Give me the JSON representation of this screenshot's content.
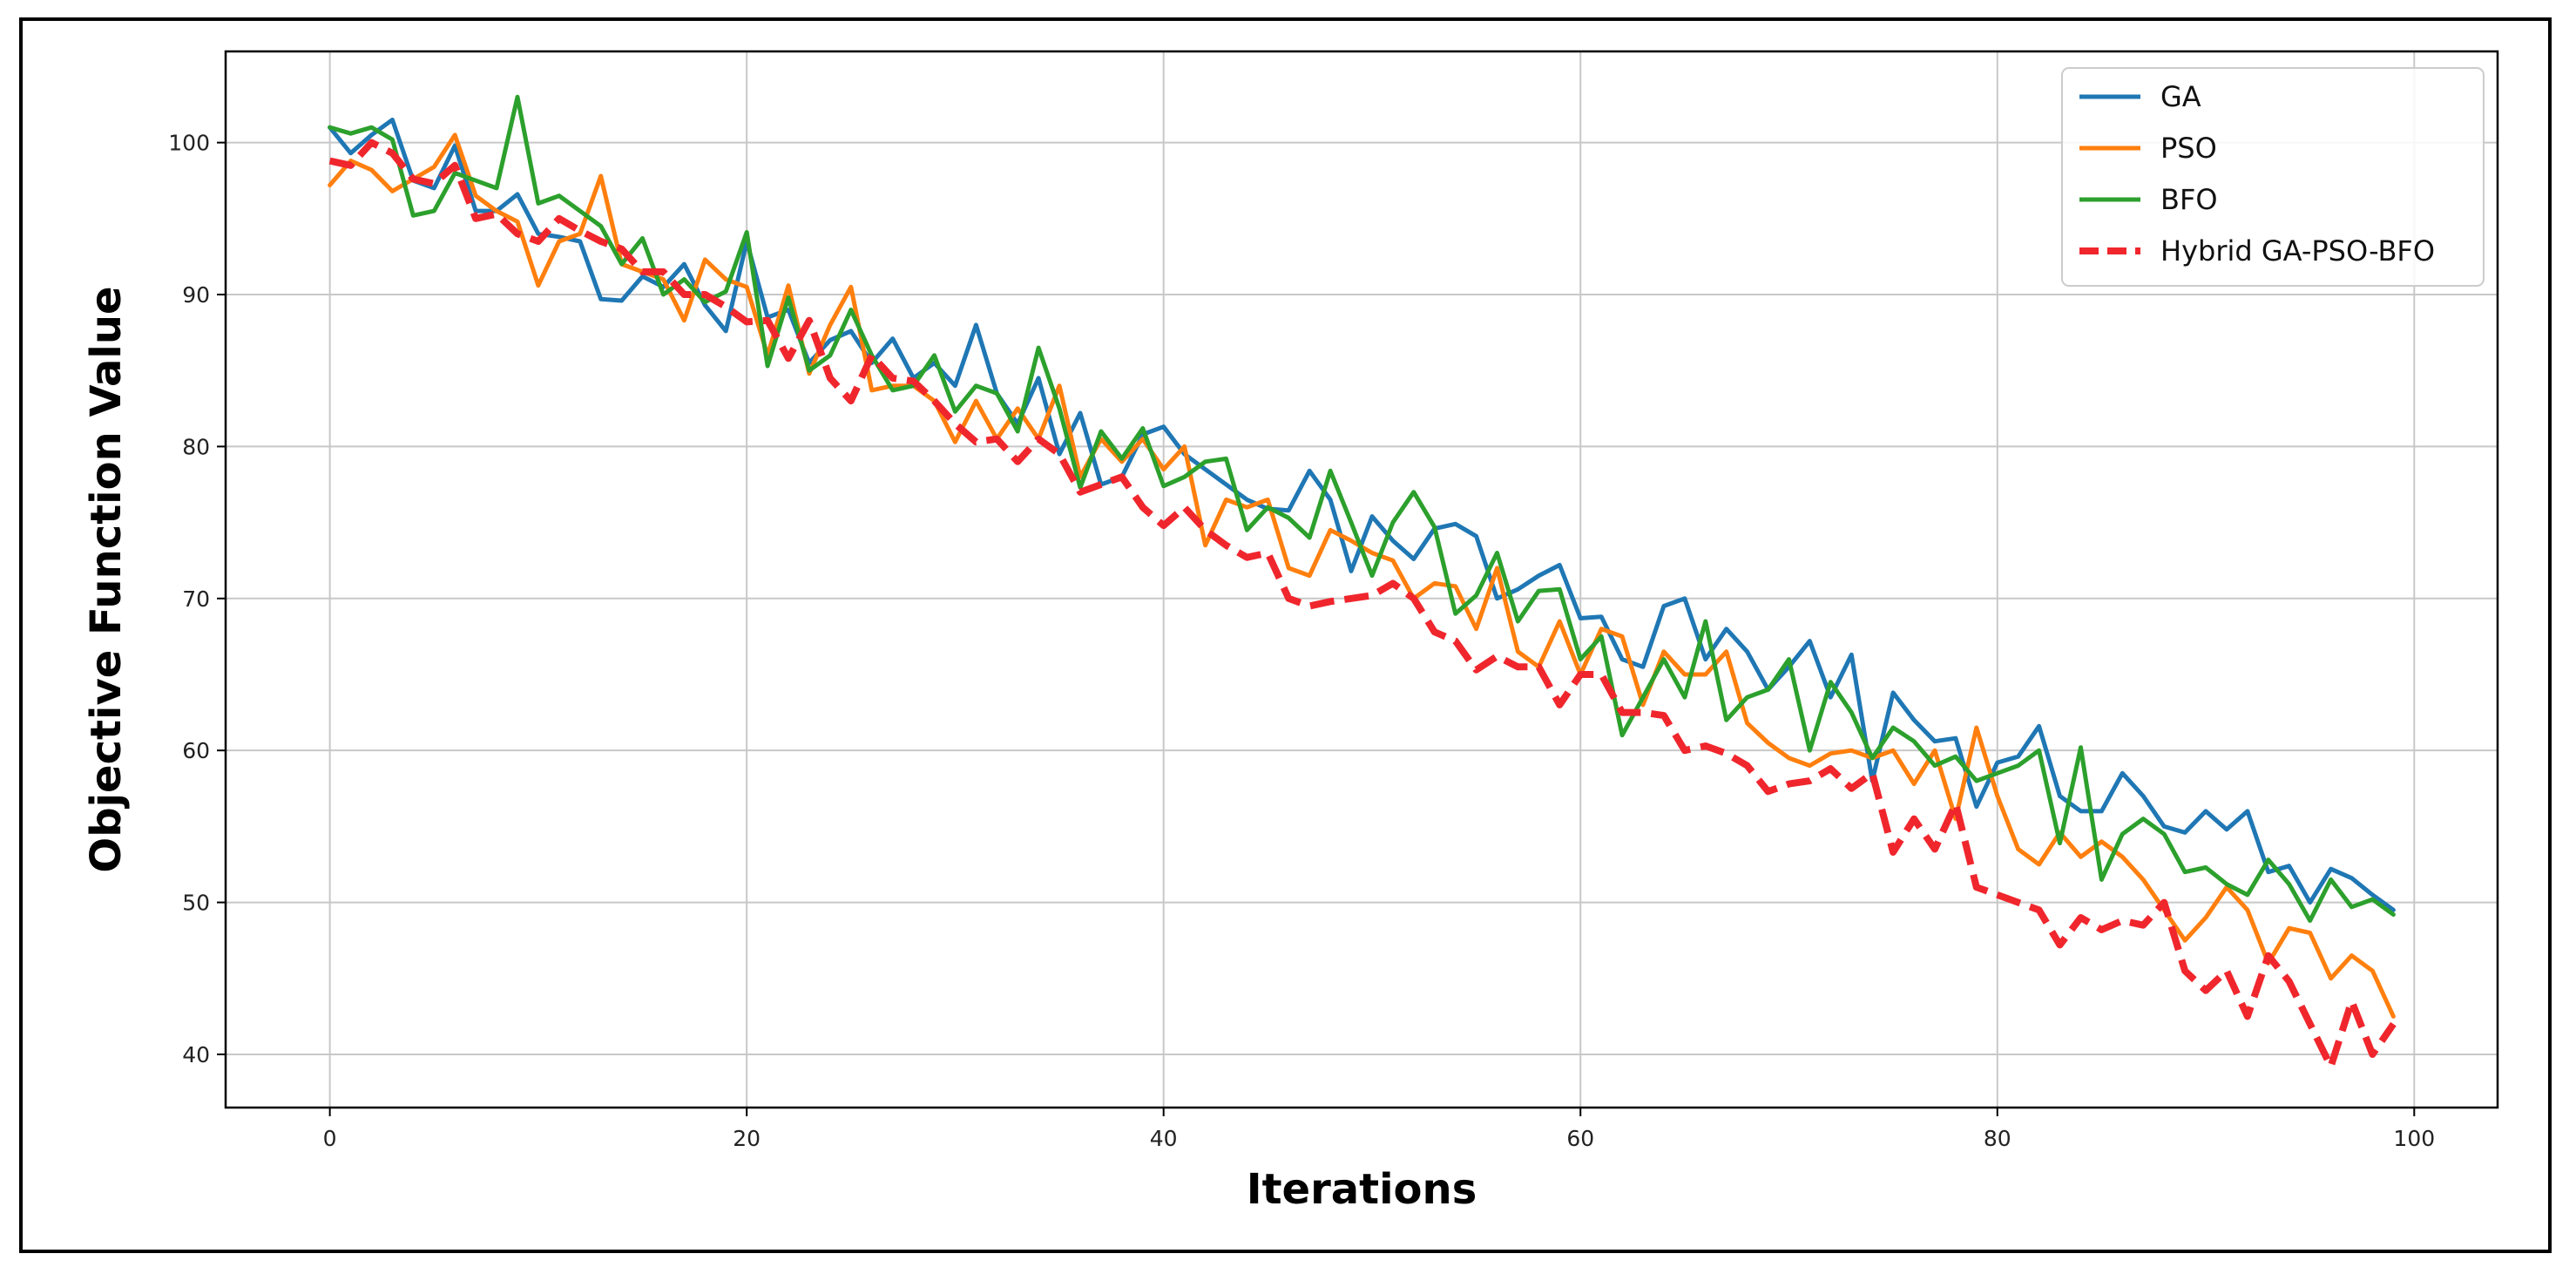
{
  "chart_data": {
    "type": "line",
    "title": "",
    "xlabel": "Iterations",
    "ylabel": "Objective Function Value",
    "xlim": [
      -5,
      104
    ],
    "ylim": [
      36.5,
      106
    ],
    "xticks": [
      0,
      20,
      40,
      60,
      80,
      100
    ],
    "yticks": [
      40,
      50,
      60,
      70,
      80,
      90,
      100
    ],
    "grid": true,
    "legend_position": "top-right",
    "series": [
      {
        "name": "GA",
        "color": "#1f77b4",
        "style": "solid",
        "x": [
          0,
          1,
          2,
          3,
          4,
          5,
          6,
          7,
          8,
          9,
          10,
          11,
          12,
          13,
          14,
          15,
          16,
          17,
          18,
          19,
          20,
          21,
          22,
          23,
          24,
          25,
          26,
          27,
          28,
          29,
          30,
          31,
          32,
          33,
          34,
          35,
          36,
          37,
          38,
          39,
          40,
          41,
          42,
          43,
          44,
          45,
          46,
          47,
          48,
          49,
          50,
          51,
          52,
          53,
          54,
          55,
          56,
          57,
          58,
          59,
          60,
          61,
          62,
          63,
          64,
          65,
          66,
          67,
          68,
          69,
          70,
          71,
          72,
          73,
          74,
          75,
          76,
          77,
          78,
          79,
          80,
          81,
          82,
          83,
          84,
          85,
          86,
          87,
          88,
          89,
          90,
          91,
          92,
          93,
          94,
          95,
          96,
          97,
          98,
          99
        ],
        "y": [
          101,
          99.3,
          100.5,
          101.5,
          97.5,
          97,
          99.8,
          95.5,
          95.5,
          96.6,
          94,
          93.8,
          93.5,
          89.7,
          89.6,
          91.2,
          90.5,
          92,
          89.3,
          87.6,
          93.5,
          88.5,
          89,
          85.5,
          87,
          87.6,
          85.5,
          87.1,
          84.5,
          85.5,
          84,
          88,
          83.5,
          81.5,
          84.5,
          79.5,
          82.2,
          77.5,
          78,
          80.8,
          81.3,
          79.5,
          78.5,
          77.5,
          76.5,
          75.9,
          75.8,
          78.4,
          76.5,
          71.8,
          75.4,
          73.8,
          72.6,
          74.6,
          74.9,
          74.1,
          70,
          70.6,
          71.5,
          72.2,
          68.7,
          68.8,
          66,
          65.5,
          69.5,
          70,
          66,
          68,
          66.5,
          64,
          65.5,
          67.2,
          63.5,
          66.3,
          58,
          63.8,
          62,
          60.6,
          60.8,
          56.3,
          59.2,
          59.6,
          61.6,
          57,
          56,
          56,
          58.5,
          57,
          55,
          54.6,
          56,
          54.8,
          56,
          52,
          52.4,
          50,
          52.2,
          51.6,
          50.5,
          49.5
        ]
      },
      {
        "name": "PSO",
        "color": "#ff7f0e",
        "style": "solid",
        "x": [
          0,
          1,
          2,
          3,
          4,
          5,
          6,
          7,
          8,
          9,
          10,
          11,
          12,
          13,
          14,
          15,
          16,
          17,
          18,
          19,
          20,
          21,
          22,
          23,
          24,
          25,
          26,
          27,
          28,
          29,
          30,
          31,
          32,
          33,
          34,
          35,
          36,
          37,
          38,
          39,
          40,
          41,
          42,
          43,
          44,
          45,
          46,
          47,
          48,
          49,
          50,
          51,
          52,
          53,
          54,
          55,
          56,
          57,
          58,
          59,
          60,
          61,
          62,
          63,
          64,
          65,
          66,
          67,
          68,
          69,
          70,
          71,
          72,
          73,
          74,
          75,
          76,
          77,
          78,
          79,
          80,
          81,
          82,
          83,
          84,
          85,
          86,
          87,
          88,
          89,
          90,
          91,
          92,
          93,
          94,
          95,
          96,
          97,
          98,
          99
        ],
        "y": [
          97.2,
          98.8,
          98.2,
          96.8,
          97.6,
          98.4,
          100.5,
          96.5,
          95.5,
          94.8,
          90.6,
          93.5,
          94,
          97.8,
          92,
          91.5,
          91,
          88.3,
          92.3,
          91,
          90.5,
          86,
          90.6,
          84.8,
          88,
          90.5,
          83.7,
          84,
          84,
          83,
          80.3,
          83,
          80.5,
          82.5,
          80.5,
          84,
          78,
          80.5,
          79,
          80.5,
          78.5,
          80,
          73.5,
          76.5,
          76,
          76.5,
          72,
          71.5,
          74.5,
          73.8,
          73,
          72.5,
          70,
          71,
          70.8,
          68,
          72,
          66.5,
          65.5,
          68.5,
          65,
          68,
          67.5,
          63,
          66.5,
          65,
          65,
          66.5,
          61.8,
          60.5,
          59.5,
          59,
          59.8,
          60,
          59.5,
          60,
          57.8,
          60,
          55.5,
          61.5,
          57,
          53.5,
          52.5,
          54.6,
          53,
          54,
          53,
          51.5,
          49.5,
          47.5,
          49,
          51,
          49.5,
          46,
          48.3,
          48,
          45,
          46.5,
          45.5,
          42.5
        ]
      },
      {
        "name": "BFO",
        "color": "#2ca02c",
        "style": "solid",
        "x": [
          0,
          1,
          2,
          3,
          4,
          5,
          6,
          7,
          8,
          9,
          10,
          11,
          12,
          13,
          14,
          15,
          16,
          17,
          18,
          19,
          20,
          21,
          22,
          23,
          24,
          25,
          26,
          27,
          28,
          29,
          30,
          31,
          32,
          33,
          34,
          35,
          36,
          37,
          38,
          39,
          40,
          41,
          42,
          43,
          44,
          45,
          46,
          47,
          48,
          49,
          50,
          51,
          52,
          53,
          54,
          55,
          56,
          57,
          58,
          59,
          60,
          61,
          62,
          63,
          64,
          65,
          66,
          67,
          68,
          69,
          70,
          71,
          72,
          73,
          74,
          75,
          76,
          77,
          78,
          79,
          80,
          81,
          82,
          83,
          84,
          85,
          86,
          87,
          88,
          89,
          90,
          91,
          92,
          93,
          94,
          95,
          96,
          97,
          98,
          99
        ],
        "y": [
          101,
          100.6,
          101,
          100.2,
          95.2,
          95.5,
          98,
          97.5,
          97,
          103,
          96,
          96.5,
          95.5,
          94.5,
          92,
          93.7,
          90,
          91,
          89.5,
          90.2,
          94.1,
          85.3,
          89.8,
          85,
          86,
          89,
          86,
          83.7,
          84,
          86,
          82.3,
          84,
          83.5,
          81,
          86.5,
          82.5,
          77.3,
          81,
          79.2,
          81.2,
          77.4,
          78,
          79,
          79.2,
          74.5,
          76,
          75.3,
          74,
          78.4,
          75,
          71.5,
          75,
          77,
          74.7,
          69,
          70.2,
          73,
          68.5,
          70.5,
          70.6,
          66,
          67.5,
          61,
          63.5,
          66,
          63.5,
          68.5,
          62,
          63.5,
          64,
          66,
          60,
          64.5,
          62.5,
          59.5,
          61.5,
          60.6,
          59,
          59.6,
          58,
          58.5,
          59,
          60,
          53.9,
          60.2,
          51.5,
          54.5,
          55.5,
          54.5,
          52,
          52.3,
          51.2,
          50.5,
          52.8,
          51.2,
          48.8,
          51.5,
          49.7,
          50.2,
          49.2
        ]
      },
      {
        "name": "Hybrid GA-PSO-BFO",
        "color": "#f0262d",
        "style": "dashed",
        "x": [
          0,
          1,
          2,
          3,
          4,
          5,
          6,
          7,
          8,
          9,
          10,
          11,
          12,
          13,
          14,
          15,
          16,
          17,
          18,
          19,
          20,
          21,
          22,
          23,
          24,
          25,
          26,
          27,
          28,
          29,
          30,
          31,
          32,
          33,
          34,
          35,
          36,
          37,
          38,
          39,
          40,
          41,
          42,
          43,
          44,
          45,
          46,
          47,
          48,
          49,
          50,
          51,
          52,
          53,
          54,
          55,
          56,
          57,
          58,
          59,
          60,
          61,
          62,
          63,
          64,
          65,
          66,
          67,
          68,
          69,
          70,
          71,
          72,
          73,
          74,
          75,
          76,
          77,
          78,
          79,
          80,
          81,
          82,
          83,
          84,
          85,
          86,
          87,
          88,
          89,
          90,
          91,
          92,
          93,
          94,
          95,
          96,
          97,
          98,
          99
        ],
        "y": [
          98.8,
          98.5,
          100,
          99.3,
          97.6,
          97.3,
          98.5,
          95,
          95.3,
          94,
          93.5,
          95,
          94.2,
          93.5,
          93,
          91.5,
          91.5,
          90,
          90,
          89.2,
          88.2,
          88.3,
          85.8,
          88.3,
          84.5,
          83,
          86,
          84.5,
          84.3,
          83,
          81.5,
          80.3,
          80.5,
          79,
          80.5,
          79.5,
          77,
          77.5,
          78,
          76,
          74.8,
          76,
          74.5,
          73.5,
          72.7,
          73,
          70,
          69.5,
          69.8,
          70,
          70.2,
          71,
          70,
          67.8,
          67.2,
          65.3,
          66.2,
          65.5,
          65.5,
          63,
          65,
          65,
          62.5,
          62.5,
          62.3,
          60,
          60.3,
          59.8,
          59,
          57.3,
          57.8,
          58,
          58.8,
          57.5,
          58.5,
          53.3,
          55.5,
          53.5,
          56.5,
          51,
          50.5,
          50,
          49.5,
          47.2,
          49,
          48.2,
          48.8,
          48.5,
          50,
          45.5,
          44.2,
          45.5,
          42.5,
          46.5,
          44.8,
          42,
          39.2,
          43.5,
          40,
          42
        ]
      }
    ]
  }
}
